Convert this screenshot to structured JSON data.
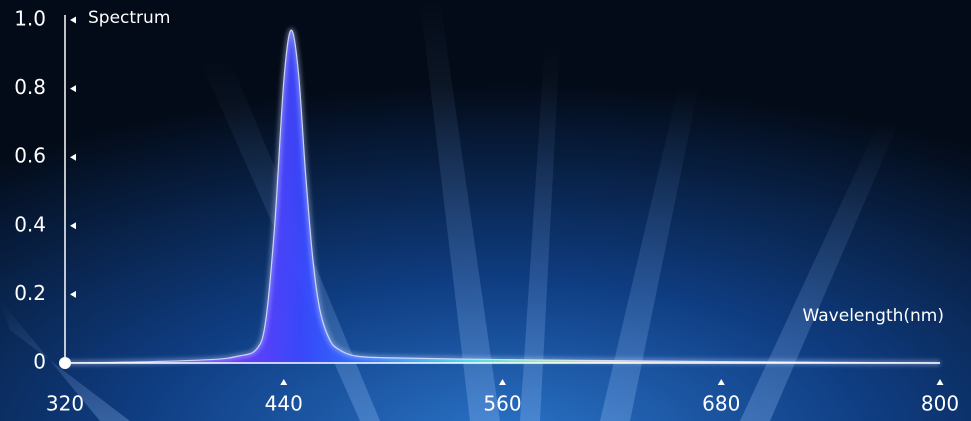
{
  "chart_data": {
    "type": "area",
    "y_label": "Spectrum",
    "x_label": "Wavelength(nm)",
    "x": [
      320,
      360,
      400,
      415,
      425,
      430,
      435,
      440,
      444,
      448,
      452,
      456,
      460,
      465,
      470,
      480,
      500,
      560,
      620,
      680,
      740,
      800
    ],
    "values": [
      0,
      0.003,
      0.01,
      0.02,
      0.04,
      0.12,
      0.4,
      0.82,
      0.97,
      0.85,
      0.55,
      0.3,
      0.15,
      0.07,
      0.04,
      0.02,
      0.015,
      0.01,
      0.007,
      0.004,
      0.002,
      0
    ],
    "color": "#3a48ff",
    "xlim": [
      320,
      800
    ],
    "ylim": [
      0,
      1
    ],
    "xticks": [
      320,
      440,
      560,
      680,
      800
    ],
    "yticks": [
      0,
      0.2,
      0.4,
      0.6,
      0.8,
      {
        "value": 1,
        "label": "1.0"
      }
    ]
  }
}
